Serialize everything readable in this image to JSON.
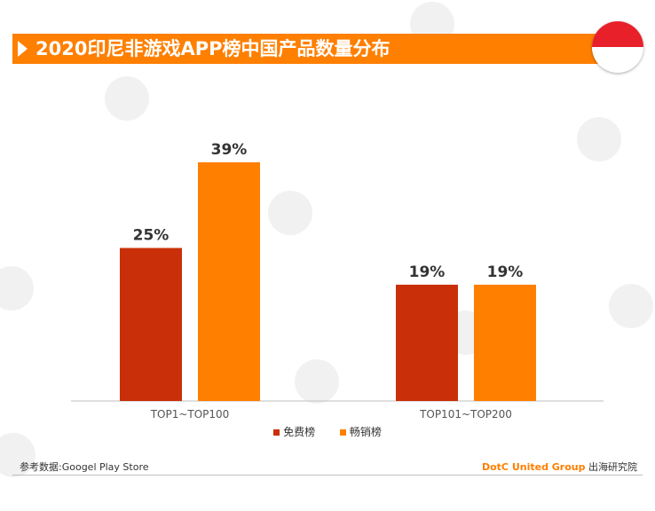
{
  "title": "2020印尼非游戏APP榜中国产品数量分布",
  "flag_colors": {
    "top": "#e8202a",
    "bottom": "#ffffff"
  },
  "colors": {
    "accent": "#ff7f00",
    "series_free": "#c9300a",
    "series_grossing": "#ff7f00"
  },
  "chart_data": {
    "type": "bar",
    "title": "2020印尼非游戏APP榜中国产品数量分布",
    "categories": [
      "TOP1~TOP100",
      "TOP101~TOP200"
    ],
    "series": [
      {
        "name": "免费榜",
        "values": [
          25,
          19
        ],
        "labels": [
          "25%",
          "19%"
        ]
      },
      {
        "name": "畅销榜",
        "values": [
          39,
          19
        ],
        "labels": [
          "39%",
          "19%"
        ]
      }
    ],
    "ylim": [
      0,
      50
    ],
    "unit": "%",
    "grid": false,
    "legend_position": "bottom"
  },
  "legend": {
    "free": "免费榜",
    "grossing": "畅销榜"
  },
  "footer": {
    "source": "参考数据:Googel Play Store",
    "brand": "DotC United Group",
    "org": "出海研究院"
  }
}
